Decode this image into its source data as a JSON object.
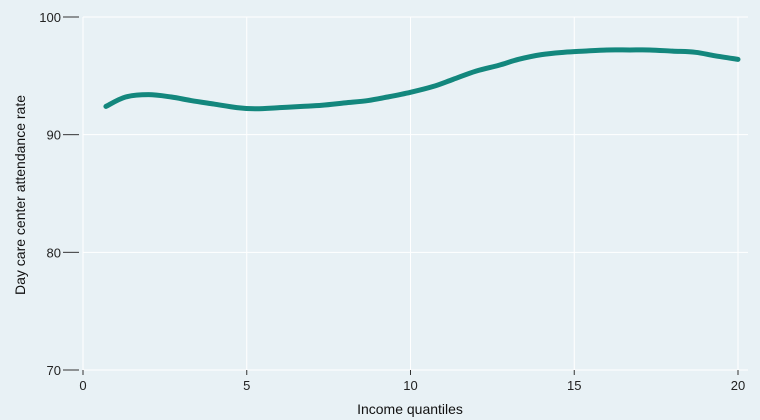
{
  "chart_data": {
    "type": "line",
    "xlabel": "Income quantiles",
    "ylabel": "Day care center attendance rate",
    "xlim": [
      0,
      20
    ],
    "ylim": [
      70,
      100
    ],
    "x_ticks": [
      0,
      5,
      10,
      15,
      20
    ],
    "y_ticks": [
      70,
      80,
      90,
      100
    ],
    "grid": "vertical and horizontal",
    "background_color": "#e8f1f5",
    "grid_color": "#ffffff",
    "series": [
      {
        "color": "#13877d",
        "x": [
          0.7,
          1.3,
          2,
          2.7,
          3.3,
          4,
          4.7,
          5.3,
          6,
          6.7,
          7.3,
          8,
          8.7,
          9.3,
          10,
          10.7,
          11.3,
          12,
          12.7,
          13.3,
          14,
          14.7,
          15.3,
          16,
          16.7,
          17.3,
          18,
          18.7,
          19.3,
          20
        ],
        "y": [
          92.4,
          93.2,
          93.4,
          93.2,
          92.9,
          92.6,
          92.3,
          92.2,
          92.3,
          92.4,
          92.5,
          92.7,
          92.9,
          93.2,
          93.6,
          94.1,
          94.7,
          95.4,
          95.9,
          96.4,
          96.8,
          97.0,
          97.1,
          97.2,
          97.2,
          97.2,
          97.1,
          97.0,
          96.7,
          96.4
        ]
      }
    ]
  }
}
